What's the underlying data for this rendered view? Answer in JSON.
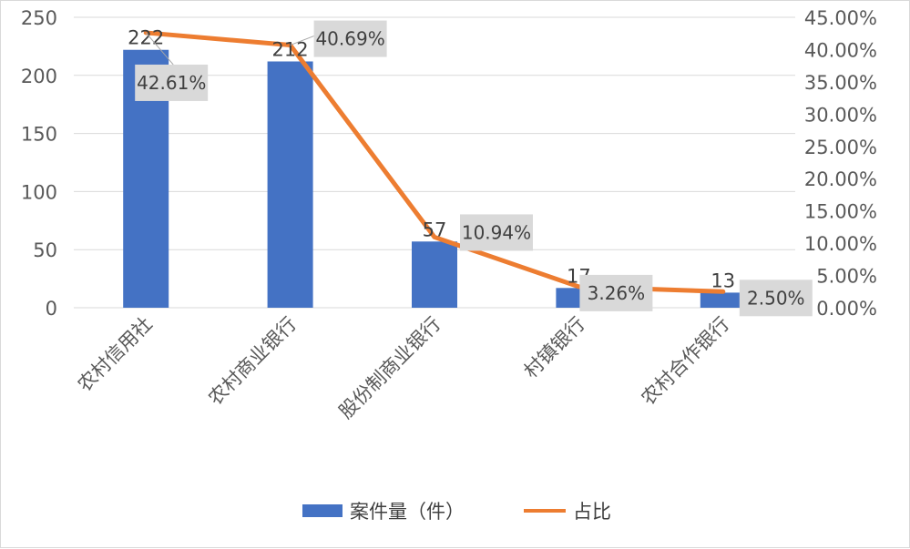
{
  "chart_data": {
    "type": "bar",
    "categories": [
      "农村信用社",
      "农村商业银行",
      "股份制商业银行",
      "村镇银行",
      "农村合作银行"
    ],
    "series": [
      {
        "name": "案件量（件）",
        "type": "bar",
        "axis": "left",
        "values": [
          222,
          212,
          57,
          17,
          13
        ],
        "value_labels": [
          "222",
          "212",
          "57",
          "17",
          "13"
        ],
        "color": "#4472C4"
      },
      {
        "name": "占比",
        "type": "line",
        "axis": "right",
        "values": [
          42.61,
          40.69,
          10.94,
          3.26,
          2.5
        ],
        "value_labels": [
          "42.61%",
          "40.69%",
          "10.94%",
          "3.26%",
          "2.50%"
        ],
        "color": "#ED7D31"
      }
    ],
    "left_axis": {
      "ylim": [
        0,
        250
      ],
      "ticks": [
        "0",
        "50",
        "100",
        "150",
        "200",
        "250"
      ]
    },
    "right_axis": {
      "ylim": [
        0,
        45
      ],
      "ticks": [
        "0.00%",
        "5.00%",
        "10.00%",
        "15.00%",
        "20.00%",
        "25.00%",
        "30.00%",
        "35.00%",
        "40.00%",
        "45.00%"
      ]
    },
    "grid": true,
    "legend_position": "bottom",
    "label_box_color": "#D9D9D9",
    "grid_color": "#D9D9D9"
  }
}
